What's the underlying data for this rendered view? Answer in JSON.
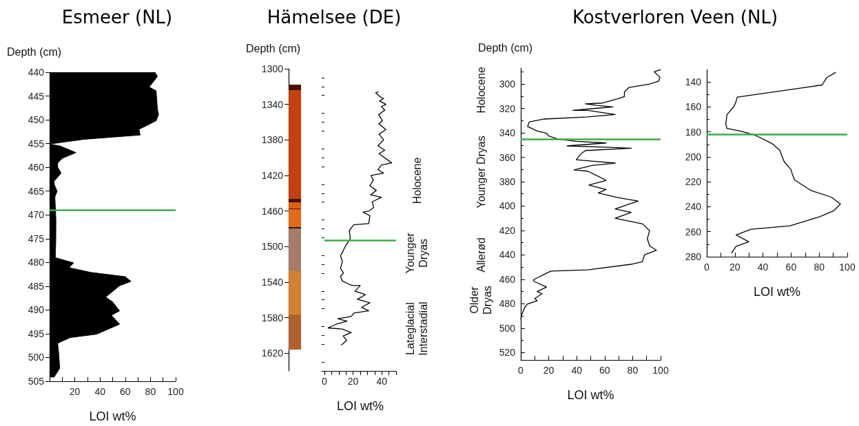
{
  "chart_data": [
    {
      "type": "area",
      "title": "Esmeer (NL)",
      "xlabel": "LOI wt%",
      "ylabel": "Depth (cm)",
      "color": "#000000",
      "marker": "none",
      "x": [
        83.6,
        85.5,
        79,
        84.5,
        85.5,
        86.4,
        84.5,
        76.4,
        70.9,
        71.8,
        27.3,
        0,
        8.2,
        20.9,
        10,
        6.4,
        6.4,
        9.1,
        3.6,
        3.6,
        6,
        4.2,
        4.5,
        5,
        4.9,
        4.5,
        19.1,
        15.5,
        32.7,
        60,
        64.5,
        55.5,
        44.5,
        50,
        55.5,
        49,
        55.5,
        37.3,
        16.4,
        6.4,
        7.3,
        8,
        3.6,
        0
      ],
      "values": [
        440,
        440.9,
        443.1,
        443.9,
        447.7,
        448.9,
        450.2,
        451.3,
        452,
        453.2,
        454.1,
        455.1,
        455.5,
        456.9,
        458.1,
        459.1,
        460,
        461.2,
        462.9,
        463.6,
        465,
        466.2,
        468.1,
        471,
        475.7,
        479,
        480.1,
        481.1,
        482.1,
        483,
        484,
        484.9,
        487.3,
        488.3,
        490.2,
        491.1,
        493,
        495.1,
        495.8,
        497,
        499.4,
        502.3,
        504.1,
        504.1
      ],
      "xlim": [
        0,
        100
      ],
      "xticks": [
        {
          "value": 0,
          "label": null
        },
        {
          "value": 10,
          "label": null
        },
        20,
        {
          "value": 30,
          "label": null
        },
        40,
        {
          "value": 50,
          "label": null
        },
        60,
        {
          "value": 70,
          "label": null
        },
        80,
        {
          "value": 90,
          "label": null
        },
        100
      ],
      "ylim": [
        505,
        440
      ],
      "yticks": [
        440,
        445,
        450,
        455,
        460,
        465,
        470,
        475,
        480,
        485,
        490,
        495,
        500,
        505
      ],
      "ref_lines": [
        {
          "axis": "y",
          "value": 469,
          "color": "#3aaa4a"
        }
      ]
    },
    {
      "type": "line",
      "title": "Hämelsee (DE)",
      "xlabel": "LOI wt%",
      "ylabel": "Depth (cm)",
      "color": "#000000",
      "marker": "none",
      "x": [
        37.8,
        35.7,
        39.7,
        41.3,
        38.4,
        42.9,
        39.7,
        42.1,
        37.8,
        40.5,
        38.1,
        42.9,
        38.1,
        41.3,
        37.3,
        42.1,
        38.1,
        46.9,
        39.7,
        37.3,
        41.3,
        32.5,
        34.1,
        31.7,
        36.2,
        32.2,
        39.7,
        33.3,
        34.4,
        31.2,
        26.9,
        31.7,
        30.9,
        20.5,
        17.3,
        18.1,
        14.9,
        12.5,
        11.2,
        12.5,
        11.2,
        13.3,
        11.2,
        12.5,
        17.3,
        19.7,
        25,
        21.3,
        28.6,
        23,
        31.7,
        26,
        30.9,
        20.5,
        18.7,
        9.3,
        15.7,
        7.7,
        2.6,
        12.5,
        18.7,
        13.1,
        15.5,
        11.7
      ],
      "values": [
        1325.8,
        1327.1,
        1332.3,
        1333.5,
        1336.1,
        1340,
        1342.6,
        1346.5,
        1351.6,
        1358.1,
        1361.9,
        1368.4,
        1373.5,
        1380,
        1386.5,
        1391.6,
        1395.5,
        1405.8,
        1408.4,
        1413.5,
        1417.4,
        1420,
        1425.2,
        1431.6,
        1436.8,
        1441.9,
        1444.5,
        1449.7,
        1456.1,
        1460,
        1461.3,
        1465.2,
        1474.2,
        1475.5,
        1481.9,
        1491,
        1498.7,
        1506.5,
        1510.3,
        1516.8,
        1524.5,
        1529.7,
        1533.5,
        1538.7,
        1542.6,
        1543.9,
        1543.9,
        1550.3,
        1554.2,
        1559.4,
        1563.2,
        1568.4,
        1572.3,
        1574.8,
        1578.7,
        1581.3,
        1583.9,
        1587.7,
        1591.6,
        1592.9,
        1596.8,
        1600.6,
        1605.8,
        1611
      ],
      "xlim": [
        0,
        50
      ],
      "xticks": [
        0,
        {
          "value": 5,
          "label": null
        },
        {
          "value": 10,
          "label": null
        },
        {
          "value": 15,
          "label": null
        },
        20,
        {
          "value": 25,
          "label": null
        },
        {
          "value": 30,
          "label": null
        },
        {
          "value": 35,
          "label": null
        },
        40,
        {
          "value": 45,
          "label": null
        },
        {
          "value": 50,
          "label": null
        }
      ],
      "ylim": [
        1640,
        1300
      ],
      "yticks": [
        1300,
        {
          "value": 1310,
          "label": null
        },
        {
          "value": 1320,
          "label": null
        },
        {
          "value": 1330,
          "label": null
        },
        1340,
        {
          "value": 1350,
          "label": null
        },
        {
          "value": 1360,
          "label": null
        },
        {
          "value": 1370,
          "label": null
        },
        1380,
        {
          "value": 1390,
          "label": null
        },
        {
          "value": 1400,
          "label": null
        },
        {
          "value": 1410,
          "label": null
        },
        1420,
        {
          "value": 1430,
          "label": null
        },
        {
          "value": 1440,
          "label": null
        },
        {
          "value": 1450,
          "label": null
        },
        1460,
        {
          "value": 1470,
          "label": null
        },
        {
          "value": 1480,
          "label": null
        },
        {
          "value": 1490,
          "label": null
        },
        1500,
        {
          "value": 1510,
          "label": null
        },
        {
          "value": 1520,
          "label": null
        },
        {
          "value": 1530,
          "label": null
        },
        1540,
        {
          "value": 1550,
          "label": null
        },
        {
          "value": 1560,
          "label": null
        },
        {
          "value": 1570,
          "label": null
        },
        1580,
        {
          "value": 1590,
          "label": null
        },
        {
          "value": 1600,
          "label": null
        },
        {
          "value": 1610,
          "label": null
        },
        1620,
        {
          "value": 1630,
          "label": null
        },
        {
          "value": 1640,
          "label": null
        }
      ],
      "ref_lines": [
        {
          "axis": "y",
          "value": 1493,
          "color": "#3aaa4a"
        }
      ],
      "annotations": [
        "Holocene",
        "Younger\nDryas",
        "Lateglacial\nInterstadial"
      ]
    },
    {
      "type": "line",
      "title": "Kostverloren Veen (NL)",
      "xlabel": "LOI wt%",
      "ylabel": "Depth (cm)",
      "color": "#000000",
      "marker": "none",
      "x": [
        100,
        95.4,
        99.5,
        98.7,
        92.1,
        77.4,
        74.1,
        74.1,
        69.2,
        58.5,
        46.2,
        54.4,
        65.9,
        56.1,
        37.2,
        47.9,
        67.5,
        47.9,
        16.7,
        6.1,
        4.9,
        11.8,
        18.4,
        20,
        26.6,
        39.7,
        61,
        33.1,
        61,
        79,
        46.2,
        42.9,
        39.7,
        47.9,
        67.5,
        51.1,
        38,
        47.9,
        52.8,
        61,
        48.7,
        61,
        55.4,
        69.5,
        83.9,
        67.5,
        79,
        67.5,
        87.2,
        92.1,
        90.5,
        92.1,
        97,
        88.5,
        86.9,
        79.8,
        47.9,
        21.6,
        16.7,
        9.3,
        9.3,
        18.4,
        11.8,
        15.1,
        10,
        11.8,
        4.4,
        2.8,
        0.7,
        0
      ],
      "values": [
        288.2,
        290,
        294.4,
        297.6,
        300,
        302.8,
        306.6,
        310.3,
        312.2,
        315.6,
        316.3,
        317.5,
        318.8,
        319.7,
        321.6,
        321.6,
        325,
        326.9,
        328.7,
        331,
        334.8,
        338.5,
        340.4,
        342.6,
        345.1,
        347,
        348.3,
        350.7,
        351.7,
        352.6,
        354.5,
        357.3,
        362,
        362.9,
        364.8,
        366.7,
        370.4,
        371.4,
        374.2,
        378.9,
        382.7,
        386.4,
        389.2,
        393,
        395.8,
        402.4,
        405.2,
        409.9,
        414.6,
        420.2,
        426.8,
        432.4,
        436.2,
        440,
        445.6,
        447.5,
        452.2,
        453.2,
        455.9,
        460.2,
        461.6,
        466.3,
        470,
        471.9,
        475.7,
        477.5,
        480.4,
        483.2,
        488.8,
        492.6
      ],
      "xlim": [
        0,
        100
      ],
      "xticks": [
        0,
        {
          "value": 10,
          "label": null
        },
        20,
        {
          "value": 30,
          "label": null
        },
        40,
        {
          "value": 50,
          "label": null
        },
        60,
        {
          "value": 70,
          "label": null
        },
        80,
        {
          "value": 90,
          "label": null
        },
        100
      ],
      "ylim": [
        526,
        287
      ],
      "yticks": [
        {
          "value": 290,
          "label": null
        },
        300,
        {
          "value": 310,
          "label": null
        },
        320,
        {
          "value": 330,
          "label": null
        },
        340,
        {
          "value": 350,
          "label": null
        },
        360,
        {
          "value": 370,
          "label": null
        },
        380,
        {
          "value": 390,
          "label": null
        },
        400,
        {
          "value": 410,
          "label": null
        },
        420,
        {
          "value": 430,
          "label": null
        },
        440,
        {
          "value": 450,
          "label": null
        },
        460,
        {
          "value": 470,
          "label": null
        },
        480,
        {
          "value": 490,
          "label": null
        },
        500,
        {
          "value": 510,
          "label": null
        },
        520
      ],
      "ref_lines": [
        {
          "axis": "y",
          "value": 345,
          "color": "#3aaa4a"
        }
      ],
      "annotations": [
        "Holocene",
        "Younger Dryas",
        "Allerød",
        "Older\nDryas"
      ]
    },
    {
      "type": "line",
      "xlabel": "LOI wt%",
      "color": "#000000",
      "marker": "none",
      "x": [
        91.8,
        85.3,
        82.1,
        69,
        21.7,
        20.4,
        19.2,
        14.4,
        13.5,
        14.4,
        23.3,
        34.7,
        46.2,
        51.9,
        53.5,
        55.1,
        60,
        60.9,
        62.5,
        73.9,
        88.7,
        95.1,
        90.2,
        80.4,
        59.2,
        31.5,
        20.9,
        29.9,
        20.9,
        17.6
      ],
      "values": [
        132.3,
        136.5,
        142.4,
        144.6,
        152.1,
        157.1,
        159.8,
        166.2,
        173.6,
        177.2,
        179.1,
        182.8,
        189.2,
        194.7,
        199.3,
        203.9,
        210.3,
        213.9,
        218.5,
        226.8,
        232.3,
        237.8,
        243.3,
        247.9,
        255.2,
        258,
        262.6,
        268.1,
        271.7,
        277.2
      ],
      "xlim": [
        0,
        100
      ],
      "xticks": [
        0,
        {
          "value": 10,
          "label": null
        },
        20,
        {
          "value": 30,
          "label": null
        },
        40,
        {
          "value": 50,
          "label": null
        },
        60,
        {
          "value": 70,
          "label": null
        },
        80,
        {
          "value": 90,
          "label": null
        },
        100
      ],
      "ylim": [
        280,
        130
      ],
      "yticks": [
        140,
        {
          "value": 150,
          "label": null
        },
        160,
        {
          "value": 170,
          "label": null
        },
        180,
        {
          "value": 190,
          "label": null
        },
        200,
        {
          "value": 210,
          "label": null
        },
        220,
        {
          "value": 230,
          "label": null
        },
        240,
        {
          "value": 250,
          "label": null
        },
        260,
        {
          "value": 270,
          "label": null
        },
        280
      ],
      "ref_lines": [
        {
          "axis": "y",
          "value": 182,
          "color": "#3aaa4a"
        }
      ]
    }
  ]
}
